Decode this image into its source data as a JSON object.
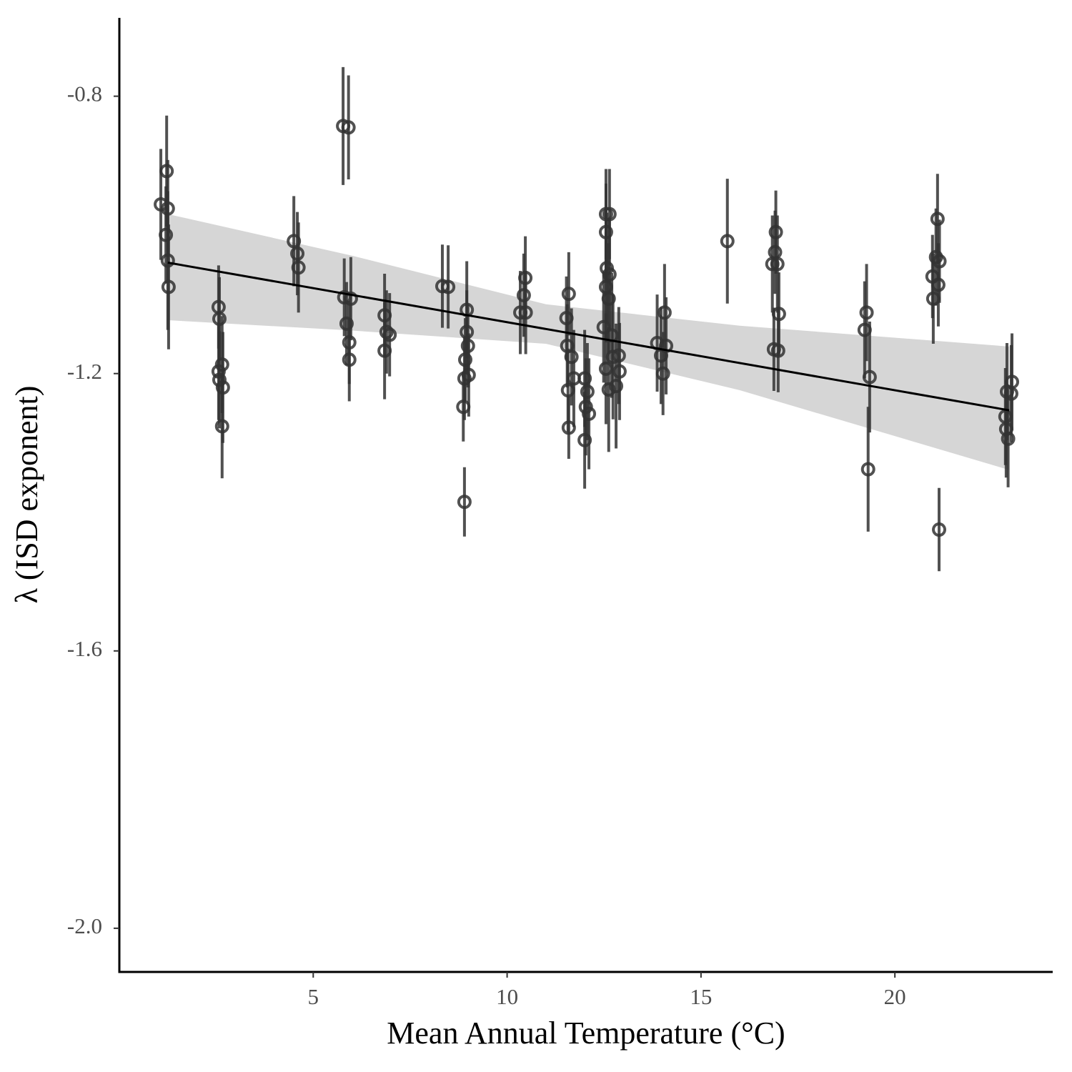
{
  "chart_data": {
    "type": "scatter",
    "x_label": "Mean Annual Temperature (°C)",
    "y_label": "λ (ISD exponent)",
    "xlim": [
      0,
      24.07
    ],
    "ylim": [
      -2.063,
      -0.687
    ],
    "xticks": [
      5,
      10,
      15,
      20
    ],
    "yticks": [
      -0.8,
      -1.2,
      -1.6,
      {
        "value": -2,
        "label": "-2.0"
      }
    ],
    "color": "#333333",
    "x": [
      1.07,
      1.22,
      1.25,
      1.2,
      1.25,
      1.27,
      2.56,
      2.58,
      2.56,
      2.58,
      2.65,
      2.67,
      2.65,
      4.5,
      4.59,
      4.62,
      5.77,
      5.91,
      5.8,
      5.97,
      5.86,
      5.93,
      5.93,
      6.84,
      6.89,
      6.97,
      6.84,
      8.33,
      8.48,
      8.96,
      8.96,
      8.99,
      8.92,
      9.01,
      8.9,
      8.87,
      8.9,
      10.47,
      10.43,
      10.34,
      10.48,
      11.59,
      11.53,
      11.55,
      11.66,
      11.72,
      11.57,
      11.59,
      12.0,
      12.07,
      12.03,
      12.11,
      12.0,
      12.55,
      12.64,
      12.55,
      12.57,
      12.64,
      12.55,
      12.62,
      12.49,
      12.7,
      12.55,
      12.73,
      12.62,
      12.81,
      12.88,
      12.9,
      13.87,
      14.06,
      13.97,
      14.02,
      14.1,
      15.68,
      16.93,
      16.91,
      16.84,
      16.97,
      17.01,
      16.88,
      16.99,
      19.27,
      19.22,
      19.35,
      19.31,
      21.1,
      21.06,
      21.15,
      20.97,
      21.12,
      20.99,
      21.14,
      22.89,
      23.02,
      23.0,
      22.85,
      22.87,
      22.92
    ],
    "y": [
      -0.956,
      -0.908,
      -0.962,
      -1.0,
      -1.037,
      -1.075,
      -1.104,
      -1.121,
      -1.197,
      -1.209,
      -1.187,
      -1.22,
      -1.276,
      -1.009,
      -1.027,
      -1.047,
      -0.843,
      -0.845,
      -1.09,
      -1.092,
      -1.128,
      -1.155,
      -1.18,
      -1.116,
      -1.14,
      -1.144,
      -1.167,
      -1.074,
      -1.075,
      -1.108,
      -1.14,
      -1.16,
      -1.18,
      -1.202,
      -1.207,
      -1.248,
      -1.385,
      -1.062,
      -1.087,
      -1.112,
      -1.112,
      -1.085,
      -1.12,
      -1.16,
      -1.176,
      -1.207,
      -1.224,
      -1.278,
      -1.207,
      -1.226,
      -1.248,
      -1.258,
      -1.296,
      -0.97,
      -0.97,
      -0.996,
      -1.048,
      -1.057,
      -1.075,
      -1.092,
      -1.133,
      -1.145,
      -1.193,
      -1.176,
      -1.223,
      -1.218,
      -1.174,
      -1.197,
      -1.156,
      -1.112,
      -1.174,
      -1.2,
      -1.16,
      -1.009,
      -0.996,
      -1.025,
      -1.042,
      -1.042,
      -1.114,
      -1.165,
      -1.167,
      -1.112,
      -1.137,
      -1.205,
      -1.338,
      -0.977,
      -1.032,
      -1.038,
      -1.06,
      -1.072,
      -1.092,
      -1.425,
      -1.226,
      -1.212,
      -1.229,
      -1.262,
      -1.28,
      -1.294
    ],
    "error": [
      0.08,
      0.08,
      0.07,
      0.07,
      0.1,
      0.09,
      0.06,
      0.06,
      0.07,
      0.07,
      0.07,
      0.08,
      0.075,
      0.065,
      0.06,
      0.065,
      0.085,
      0.075,
      0.056,
      0.06,
      0.06,
      0.06,
      0.06,
      0.06,
      0.06,
      0.06,
      0.07,
      0.06,
      0.06,
      0.07,
      0.06,
      0.06,
      0.06,
      0.06,
      0.06,
      0.05,
      0.05,
      0.06,
      0.06,
      0.06,
      0.06,
      0.06,
      0.06,
      0.06,
      0.07,
      0.07,
      0.06,
      0.045,
      0.07,
      0.07,
      0.07,
      0.08,
      0.07,
      0.065,
      0.065,
      0.07,
      0.08,
      0.08,
      0.08,
      0.08,
      0.08,
      0.09,
      0.08,
      0.09,
      0.09,
      0.09,
      0.07,
      0.07,
      0.07,
      0.07,
      0.07,
      0.06,
      0.07,
      0.09,
      0.06,
      0.06,
      0.07,
      0.07,
      0.06,
      0.06,
      0.06,
      0.07,
      0.07,
      0.08,
      0.09,
      0.065,
      0.07,
      0.06,
      0.06,
      0.06,
      0.065,
      0.06,
      0.07,
      0.07,
      0.07,
      0.07,
      0.07,
      0.07
    ],
    "fit": {
      "color": "#000000",
      "x": [
        1.25,
        22.95
      ],
      "y": [
        -1.04,
        -1.253
      ]
    },
    "band": {
      "color": "#d6d6d6",
      "x": [
        1.25,
        6,
        11,
        16,
        22.95
      ],
      "upper": [
        -0.97,
        -1.03,
        -1.1,
        -1.131,
        -1.161
      ],
      "lower": [
        -1.123,
        -1.138,
        -1.157,
        -1.224,
        -1.339
      ]
    }
  }
}
